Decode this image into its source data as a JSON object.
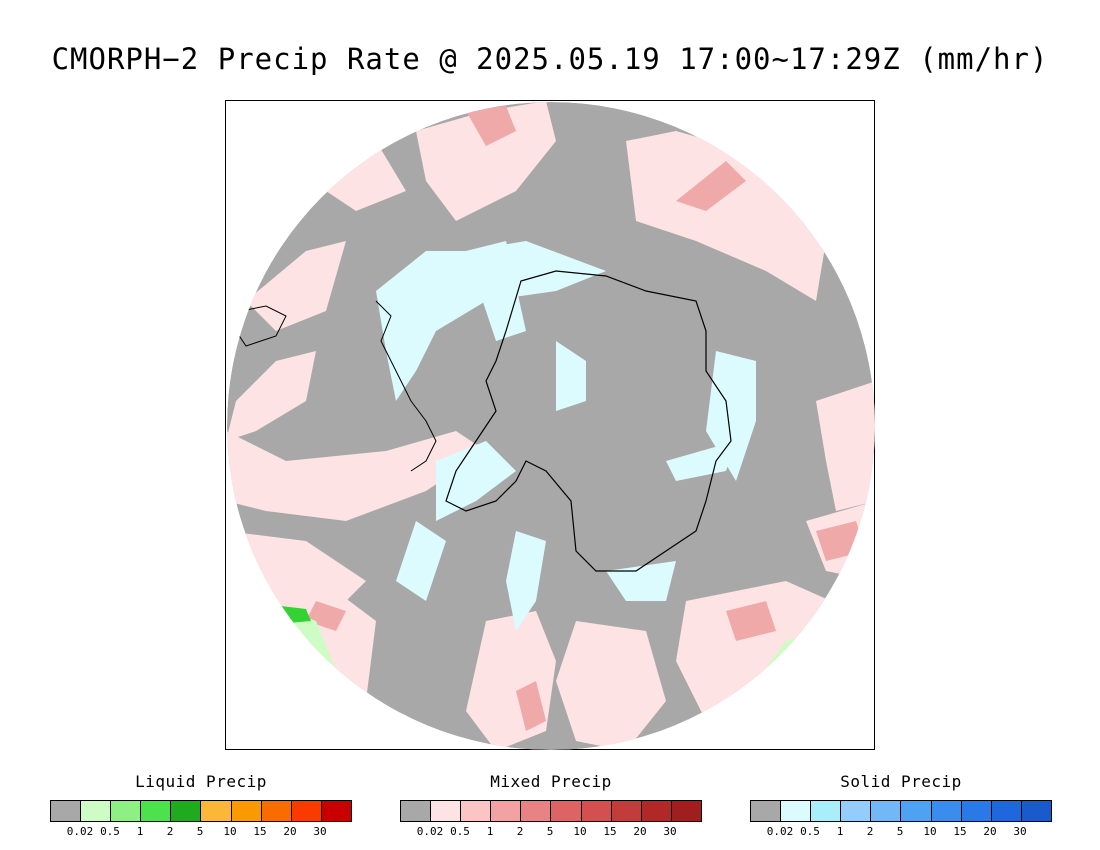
{
  "title": "CMORPH−2 Precip Rate @ 2025.05.19 17:00~17:29Z (mm/hr)",
  "map": {
    "projection": "south-polar-stereographic",
    "background_color": "#a8a8a8",
    "coastline_color": "#000000",
    "colors": {
      "mixed_light": "#fde3e3",
      "mixed_medium": "#f0a9a9",
      "solid_light": "#dcfbff",
      "liquid_light": "#cdfcc5",
      "liquid_green": "#34d234"
    }
  },
  "legends": [
    {
      "title": "Liquid Precip",
      "colors": [
        "#a8a8a8",
        "#cdfcc5",
        "#8eef85",
        "#4ee14e",
        "#1faa1f",
        "#fbb736",
        "#fb9a00",
        "#fb6c00",
        "#fb3a00",
        "#c80000"
      ],
      "ticks": [
        "0.02",
        "0.5",
        "1",
        "2",
        "5",
        "10",
        "15",
        "20",
        "30"
      ]
    },
    {
      "title": "Mixed Precip",
      "colors": [
        "#a8a8a8",
        "#fde3e3",
        "#fbc5c5",
        "#f2a2a2",
        "#e88383",
        "#dc6464",
        "#d25050",
        "#c23c3c",
        "#b02828",
        "#a01e1e"
      ],
      "ticks": [
        "0.02",
        "0.5",
        "1",
        "2",
        "5",
        "10",
        "15",
        "20",
        "30"
      ]
    },
    {
      "title": "Solid Precip",
      "colors": [
        "#a8a8a8",
        "#dcfbff",
        "#aaeefc",
        "#94cdf9",
        "#74b7f7",
        "#4ea2f1",
        "#3a8ded",
        "#2b79e6",
        "#2066de",
        "#1b5acd"
      ],
      "ticks": [
        "0.02",
        "0.5",
        "1",
        "2",
        "5",
        "10",
        "15",
        "20",
        "30"
      ]
    }
  ]
}
